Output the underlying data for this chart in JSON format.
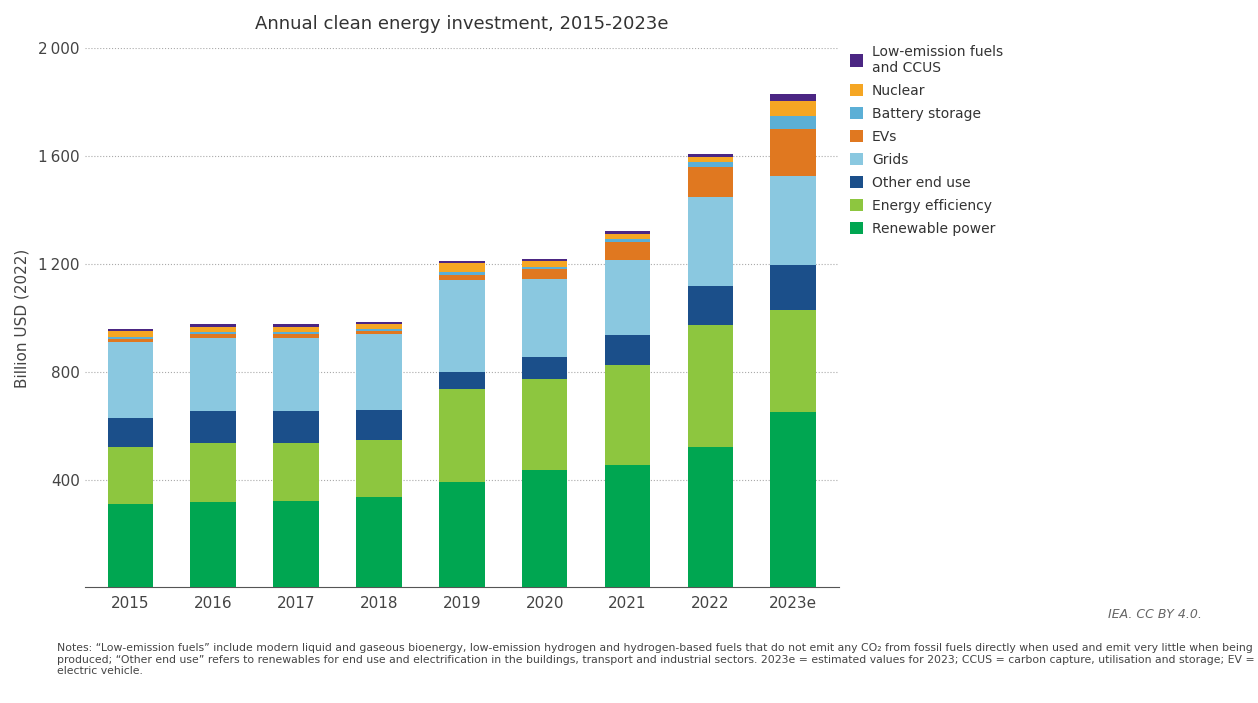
{
  "title": "Annual clean energy investment, 2015-2023e",
  "ylabel": "Billion USD (2022)",
  "years": [
    "2015",
    "2016",
    "2017",
    "2018",
    "2019",
    "2020",
    "2021",
    "2022",
    "2023e"
  ],
  "stack_order": [
    {
      "label": "Renewable power",
      "color": "#00A651"
    },
    {
      "label": "Energy efficiency",
      "color": "#8DC63F"
    },
    {
      "label": "Other end use",
      "color": "#1B4F8A"
    },
    {
      "label": "Grids",
      "color": "#8AC8E0"
    },
    {
      "label": "EVs",
      "color": "#E07820"
    },
    {
      "label": "Battery storage",
      "color": "#5BAFD6"
    },
    {
      "label": "Nuclear",
      "color": "#F5A623"
    },
    {
      "label": "Low-emission fuels\nand CCUS",
      "color": "#4B2683"
    }
  ],
  "data": {
    "Renewable power": [
      310,
      315,
      320,
      335,
      390,
      435,
      455,
      520,
      650
    ],
    "Energy efficiency": [
      210,
      220,
      215,
      210,
      345,
      340,
      370,
      455,
      380
    ],
    "Other end use": [
      110,
      120,
      120,
      115,
      65,
      80,
      110,
      145,
      165
    ],
    "Grids": [
      280,
      270,
      270,
      280,
      340,
      290,
      280,
      330,
      330
    ],
    "EVs": [
      10,
      15,
      15,
      10,
      20,
      35,
      65,
      110,
      175
    ],
    "Battery storage": [
      10,
      8,
      8,
      8,
      12,
      8,
      12,
      20,
      50
    ],
    "Nuclear": [
      20,
      20,
      20,
      18,
      30,
      22,
      20,
      18,
      55
    ],
    "Low-emission fuels\nand CCUS": [
      8,
      8,
      8,
      8,
      8,
      8,
      10,
      12,
      25
    ]
  },
  "ylim": [
    0,
    2000
  ],
  "yticks": [
    400,
    800,
    1200,
    1600,
    2000
  ],
  "background_color": "#FFFFFF",
  "notes": "Notes: “Low-emission fuels” include modern liquid and gaseous bioenergy, low-emission hydrogen and hydrogen-based fuels that do not emit any CO₂ from fossil fuels directly when used and emit very little when being produced; “Other end use” refers to renewables for end use and electrification in the buildings, transport and industrial sectors. 2023e = estimated values for 2023; CCUS = carbon capture, utilisation and storage; EV = electric vehicle.",
  "credit": "IEA. CC BY 4.0.",
  "bar_width": 0.55
}
